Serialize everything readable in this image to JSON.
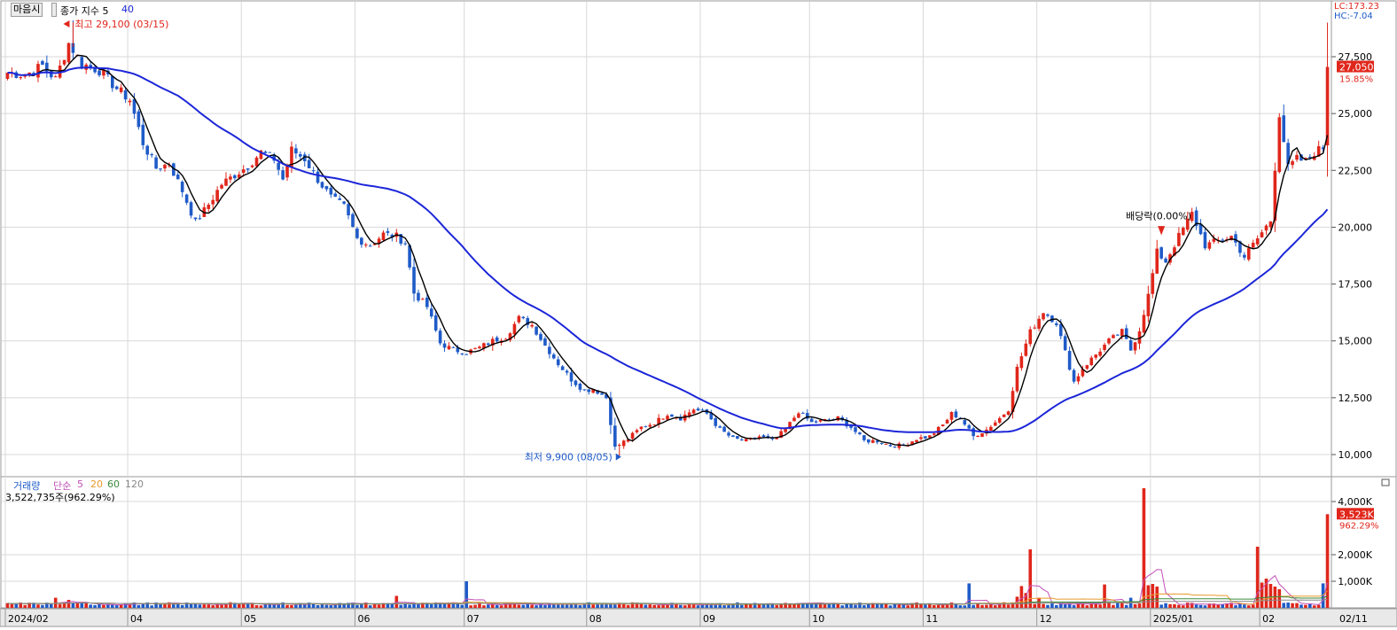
{
  "header": {
    "toggle_button": "마음시",
    "indicator_label": "종가 지수 5",
    "indicator_period": "40",
    "lc_label": "LC:173.23",
    "hc_label": "HC:-7.04"
  },
  "volume_header": {
    "label": "거래량",
    "ma_label": "단순",
    "periods": [
      "5",
      "20",
      "60",
      "120"
    ],
    "current_volume": "3,522,735주(962.29%)"
  },
  "annotations": {
    "high": "최고 29,100 (03/15)",
    "low": "최저 9,900 (08/05)",
    "dividend": "배당락(0.00%)"
  },
  "colors": {
    "up": "#e0261b",
    "down": "#1f5bc8",
    "ma_short": "#000000",
    "ma_long": "#1c26d8",
    "vol_ma5": "#c24fb8",
    "vol_ma20": "#e89a2c",
    "vol_ma60": "#3a8a3a",
    "vol_ma120": "#888888",
    "grid": "#d8d8d8"
  },
  "chart_data": [
    {
      "type": "candlestick",
      "title": "",
      "price_axis_ticks": [
        "27,500",
        "25,000",
        "22,500",
        "20,000",
        "17,500",
        "15,000",
        "12,500",
        "10,000"
      ],
      "ylim": [
        9000,
        30000
      ],
      "current_price": "27,050",
      "current_change": "15.85%",
      "x_tick_labels": [
        "2024/02",
        "04",
        "05",
        "06",
        "07",
        "08",
        "09",
        "10",
        "11",
        "12",
        "2025/01",
        "02",
        "02/11"
      ],
      "x_tick_indices": [
        0,
        28,
        54,
        80,
        105,
        133,
        159,
        184,
        210,
        236,
        262,
        287,
        307
      ],
      "control_points": [
        [
          0,
          26800
        ],
        [
          4,
          26700
        ],
        [
          8,
          27100
        ],
        [
          11,
          26500
        ],
        [
          14,
          28100
        ],
        [
          17,
          27200
        ],
        [
          21,
          26900
        ],
        [
          25,
          26100
        ],
        [
          28,
          25600
        ],
        [
          31,
          23700
        ],
        [
          34,
          22600
        ],
        [
          37,
          22800
        ],
        [
          40,
          21600
        ],
        [
          43,
          20200
        ],
        [
          46,
          21000
        ],
        [
          49,
          21900
        ],
        [
          52,
          22300
        ],
        [
          55,
          22700
        ],
        [
          58,
          23300
        ],
        [
          61,
          23000
        ],
        [
          63,
          22100
        ],
        [
          65,
          23400
        ],
        [
          68,
          23000
        ],
        [
          71,
          22100
        ],
        [
          74,
          21300
        ],
        [
          77,
          20900
        ],
        [
          80,
          19500
        ],
        [
          83,
          19200
        ],
        [
          86,
          19700
        ],
        [
          89,
          19600
        ],
        [
          91,
          19300
        ],
        [
          93,
          17100
        ],
        [
          96,
          16500
        ],
        [
          99,
          14900
        ],
        [
          102,
          14600
        ],
        [
          105,
          14500
        ],
        [
          108,
          14700
        ],
        [
          111,
          15000
        ],
        [
          114,
          15200
        ],
        [
          117,
          16000
        ],
        [
          120,
          15700
        ],
        [
          123,
          14800
        ],
        [
          126,
          14000
        ],
        [
          129,
          13300
        ],
        [
          132,
          12800
        ],
        [
          134,
          12900
        ],
        [
          137,
          12500
        ],
        [
          139,
          10300
        ],
        [
          142,
          10700
        ],
        [
          145,
          11200
        ],
        [
          148,
          11400
        ],
        [
          151,
          11800
        ],
        [
          154,
          11600
        ],
        [
          157,
          12000
        ],
        [
          160,
          11800
        ],
        [
          163,
          11100
        ],
        [
          166,
          10700
        ],
        [
          169,
          10600
        ],
        [
          172,
          10800
        ],
        [
          175,
          10600
        ],
        [
          178,
          11100
        ],
        [
          181,
          11900
        ],
        [
          184,
          11400
        ],
        [
          187,
          11500
        ],
        [
          190,
          11600
        ],
        [
          193,
          11200
        ],
        [
          196,
          10600
        ],
        [
          199,
          10600
        ],
        [
          202,
          10400
        ],
        [
          205,
          10400
        ],
        [
          208,
          10700
        ],
        [
          211,
          10800
        ],
        [
          214,
          11300
        ],
        [
          216,
          11800
        ],
        [
          218,
          11600
        ],
        [
          221,
          10800
        ],
        [
          224,
          11100
        ],
        [
          227,
          11600
        ],
        [
          229,
          12000
        ],
        [
          231,
          13800
        ],
        [
          234,
          15400
        ],
        [
          237,
          16300
        ],
        [
          240,
          15800
        ],
        [
          242,
          14500
        ],
        [
          244,
          13200
        ],
        [
          246,
          13800
        ],
        [
          249,
          14400
        ],
        [
          252,
          15000
        ],
        [
          255,
          15400
        ],
        [
          257,
          14600
        ],
        [
          259,
          15500
        ],
        [
          261,
          17000
        ],
        [
          263,
          18900
        ],
        [
          265,
          18500
        ],
        [
          268,
          19600
        ],
        [
          271,
          20600
        ],
        [
          274,
          19200
        ],
        [
          277,
          19400
        ],
        [
          280,
          19600
        ],
        [
          283,
          18700
        ],
        [
          286,
          19500
        ],
        [
          289,
          20300
        ],
        [
          291,
          25000
        ],
        [
          293,
          22600
        ],
        [
          295,
          23000
        ],
        [
          297,
          22900
        ],
        [
          299,
          23300
        ],
        [
          301,
          23500
        ],
        [
          302,
          27050
        ]
      ],
      "ma_short_period": 5,
      "ma_long_period": 40,
      "events": {
        "high": {
          "index": 15,
          "price": 29100
        },
        "low": {
          "index": 140,
          "price": 9900
        },
        "dividend_index": 264
      }
    },
    {
      "type": "bar",
      "title": "",
      "volume_axis_ticks": [
        "4,000K",
        "2,000K",
        "1,000K"
      ],
      "ylim": [
        0,
        4600
      ],
      "current_volume": "3,523K",
      "current_volume_pct": "962.29%",
      "baseline_k": 150,
      "spikes_k": [
        [
          11,
          380
        ],
        [
          14,
          300
        ],
        [
          89,
          450
        ],
        [
          105,
          1000
        ],
        [
          220,
          920
        ],
        [
          231,
          420
        ],
        [
          232,
          820
        ],
        [
          233,
          560
        ],
        [
          234,
          2200
        ],
        [
          236,
          380
        ],
        [
          251,
          880
        ],
        [
          257,
          380
        ],
        [
          260,
          4500
        ],
        [
          261,
          850
        ],
        [
          262,
          900
        ],
        [
          263,
          800
        ],
        [
          286,
          2300
        ],
        [
          287,
          950
        ],
        [
          288,
          1100
        ],
        [
          289,
          900
        ],
        [
          290,
          800
        ],
        [
          291,
          700
        ],
        [
          301,
          920
        ],
        [
          302,
          3523
        ]
      ]
    }
  ]
}
